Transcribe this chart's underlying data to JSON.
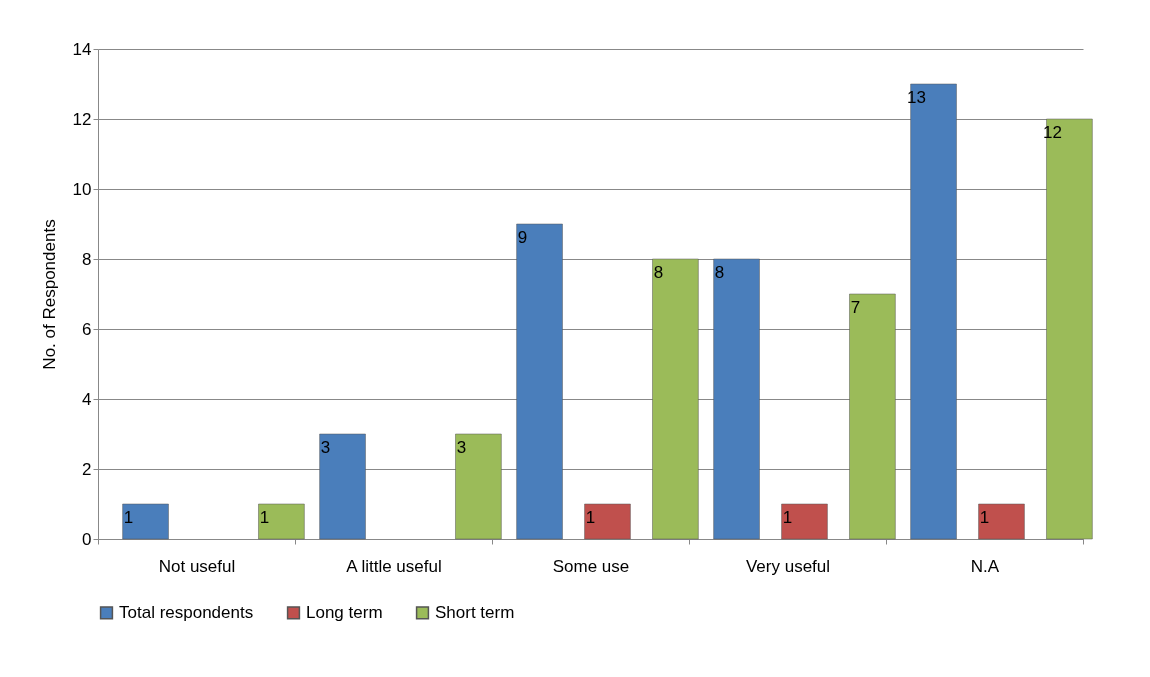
{
  "chart_data": {
    "type": "bar",
    "ylabel": "No. of Respondents",
    "categories": [
      "Not useful",
      "A little useful",
      "Some use",
      "Very useful",
      "N.A"
    ],
    "series": [
      {
        "name": "Total respondents",
        "color": "#4a7ebb",
        "values": [
          1,
          3,
          9,
          8,
          13
        ]
      },
      {
        "name": "Long term",
        "color": "#c0504d",
        "values": [
          null,
          null,
          1,
          1,
          1
        ]
      },
      {
        "name": "Short term",
        "color": "#9bbb59",
        "values": [
          1,
          3,
          8,
          7,
          12
        ]
      }
    ],
    "ylim": [
      0,
      14
    ],
    "yticks": [
      0,
      2,
      4,
      6,
      8,
      10,
      12,
      14
    ],
    "grid": "y",
    "legend": "bottom",
    "data_labels": true
  }
}
